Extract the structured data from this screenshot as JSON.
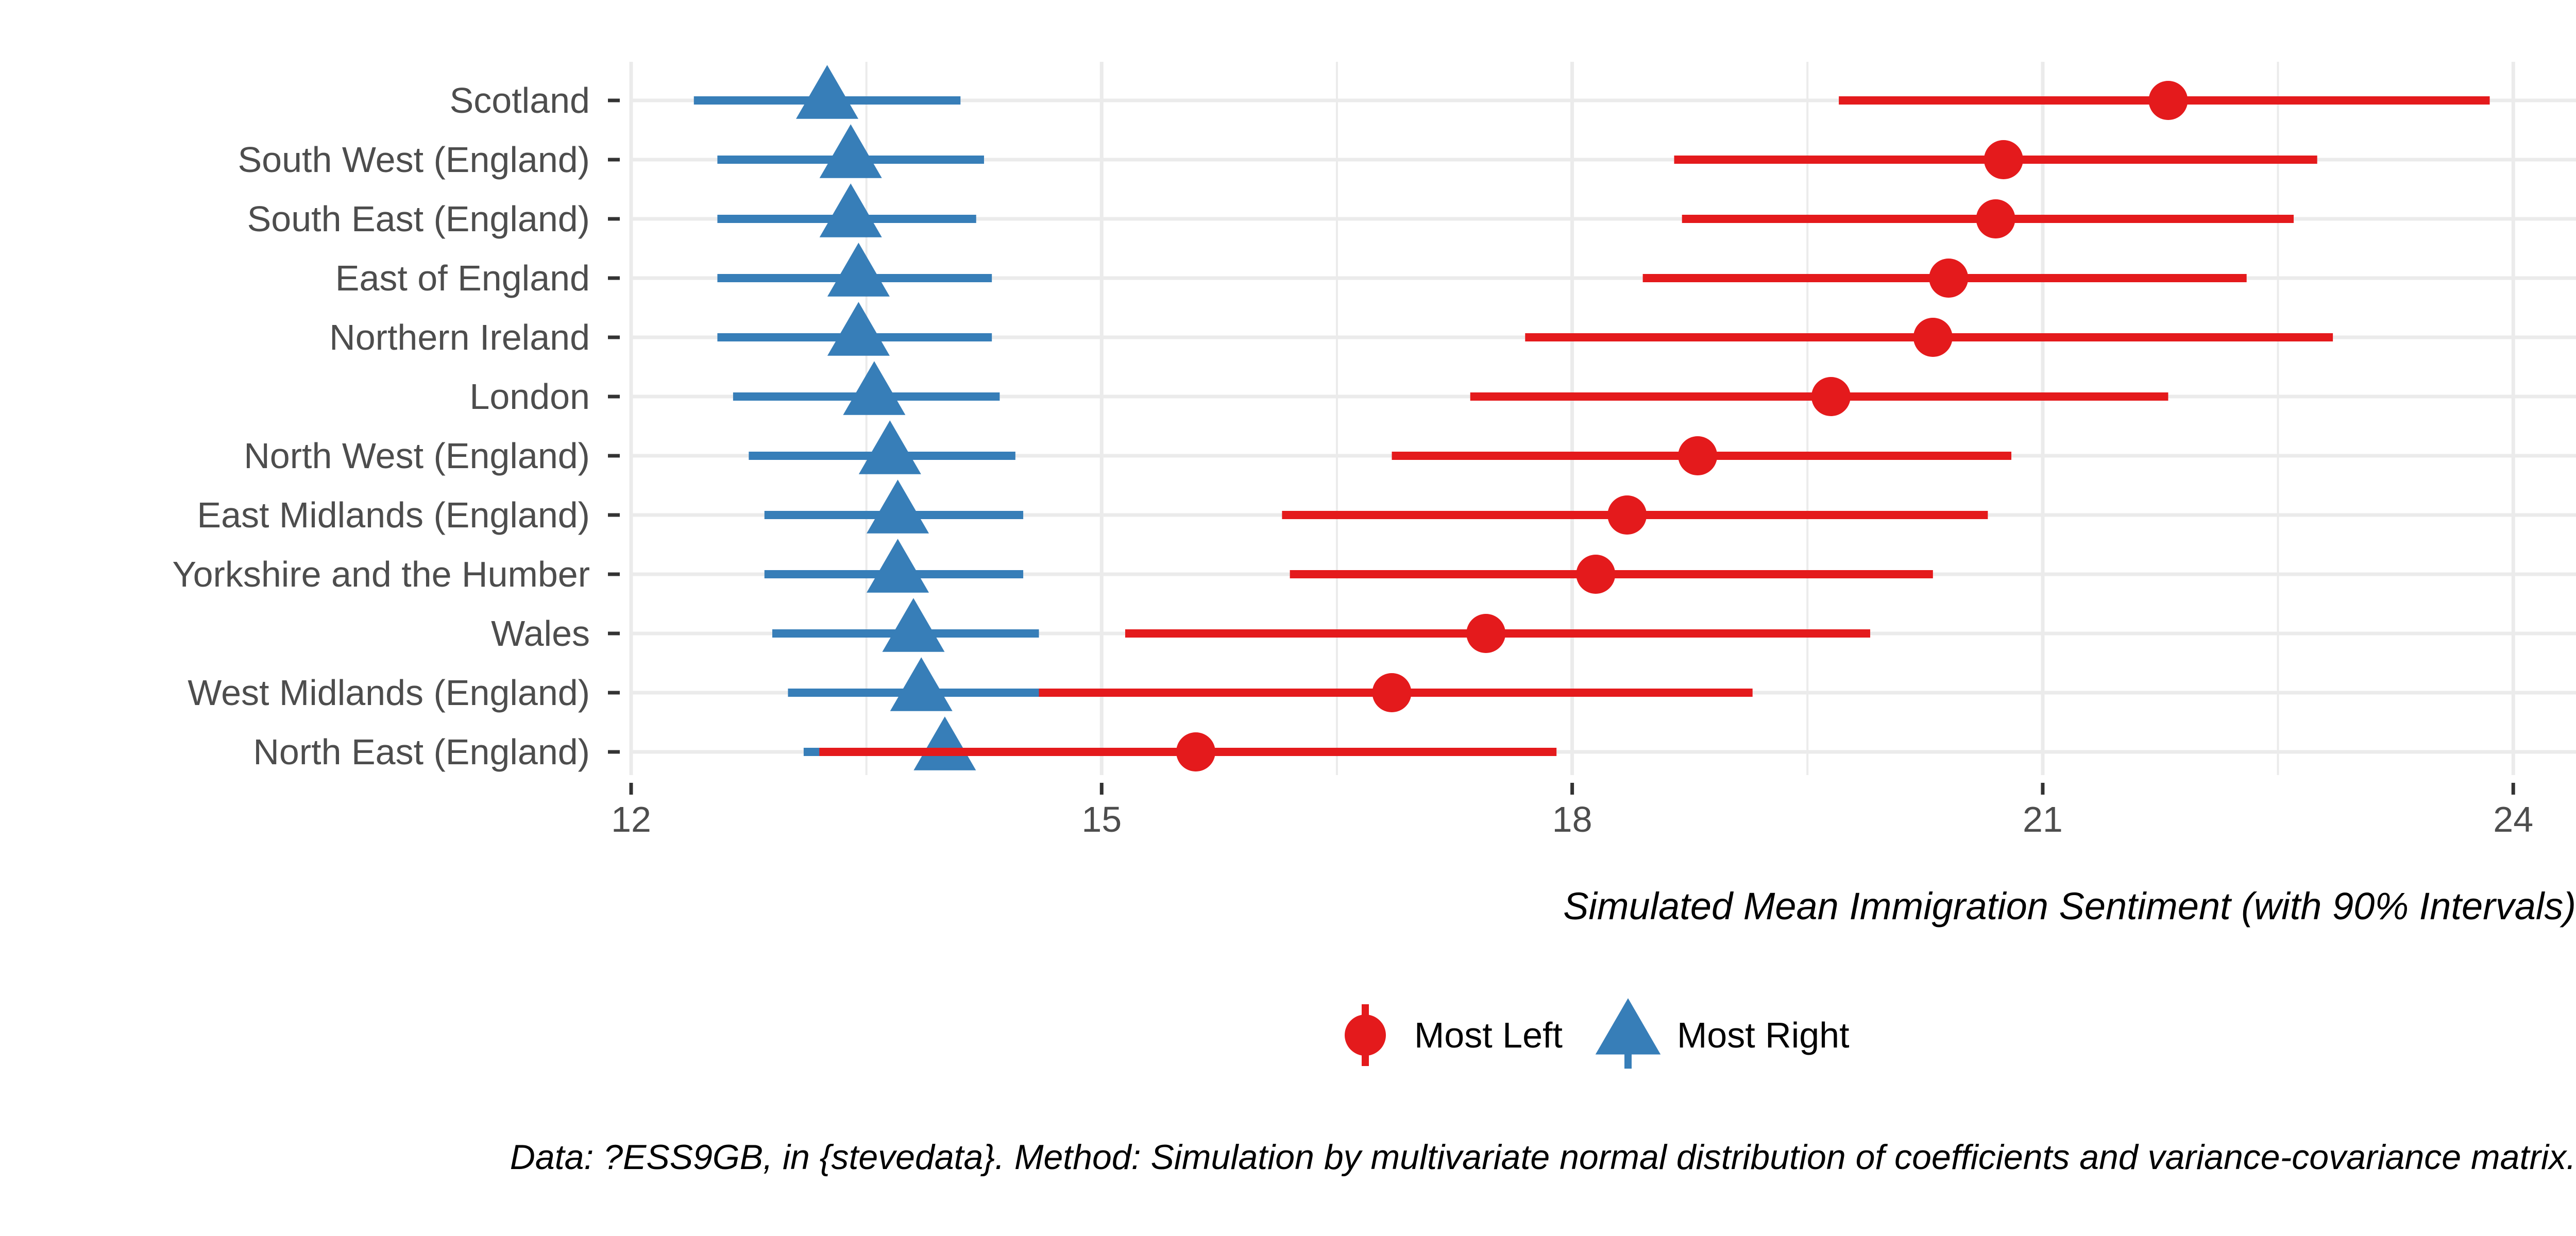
{
  "chart_data": {
    "type": "scatter",
    "title": "",
    "xlabel": "Simulated Mean Immigration Sentiment (with 90% Intervals)",
    "ylabel": "",
    "caption": "Data: ?ESS9GB, in {stevedata}. Method: Simulation by multivariate normal distribution of coefficients and variance-covariance matrix.",
    "xlim": [
      12,
      24.4
    ],
    "x_ticks": [
      12,
      15,
      18,
      21,
      24
    ],
    "x_tick_labels": [
      "12",
      "15",
      "18",
      "21",
      "24"
    ],
    "grid": true,
    "legend_position": "bottom",
    "categories": [
      "Scotland",
      "South West (England)",
      "South East (England)",
      "East of England",
      "Northern Ireland",
      "London",
      "North West (England)",
      "East Midlands (England)",
      "Yorkshire and the Humber",
      "Wales",
      "West Midlands (England)",
      "North East (England)"
    ],
    "series": [
      {
        "name": "Most Left",
        "color": "#e41a1c",
        "marker": "circle",
        "mean": [
          21.8,
          20.75,
          20.7,
          20.4,
          20.3,
          19.65,
          18.8,
          18.35,
          18.15,
          17.45,
          16.85,
          15.6
        ],
        "lower": [
          19.7,
          18.65,
          18.7,
          18.45,
          17.7,
          17.35,
          16.85,
          16.15,
          16.2,
          15.15,
          14.6,
          13.2
        ],
        "upper": [
          23.85,
          22.75,
          22.6,
          22.3,
          22.85,
          21.8,
          20.8,
          20.65,
          20.3,
          19.9,
          19.15,
          17.9
        ]
      },
      {
        "name": "Most Right",
        "color": "#377eb8",
        "marker": "triangle",
        "mean": [
          13.25,
          13.4,
          13.4,
          13.45,
          13.45,
          13.55,
          13.65,
          13.7,
          13.7,
          13.8,
          13.85,
          14.0
        ],
        "lower": [
          12.4,
          12.55,
          12.55,
          12.55,
          12.55,
          12.65,
          12.75,
          12.85,
          12.85,
          12.9,
          13.0,
          13.1
        ],
        "upper": [
          14.1,
          14.25,
          14.2,
          14.3,
          14.3,
          14.35,
          14.45,
          14.5,
          14.5,
          14.6,
          14.7,
          14.85
        ]
      }
    ]
  }
}
